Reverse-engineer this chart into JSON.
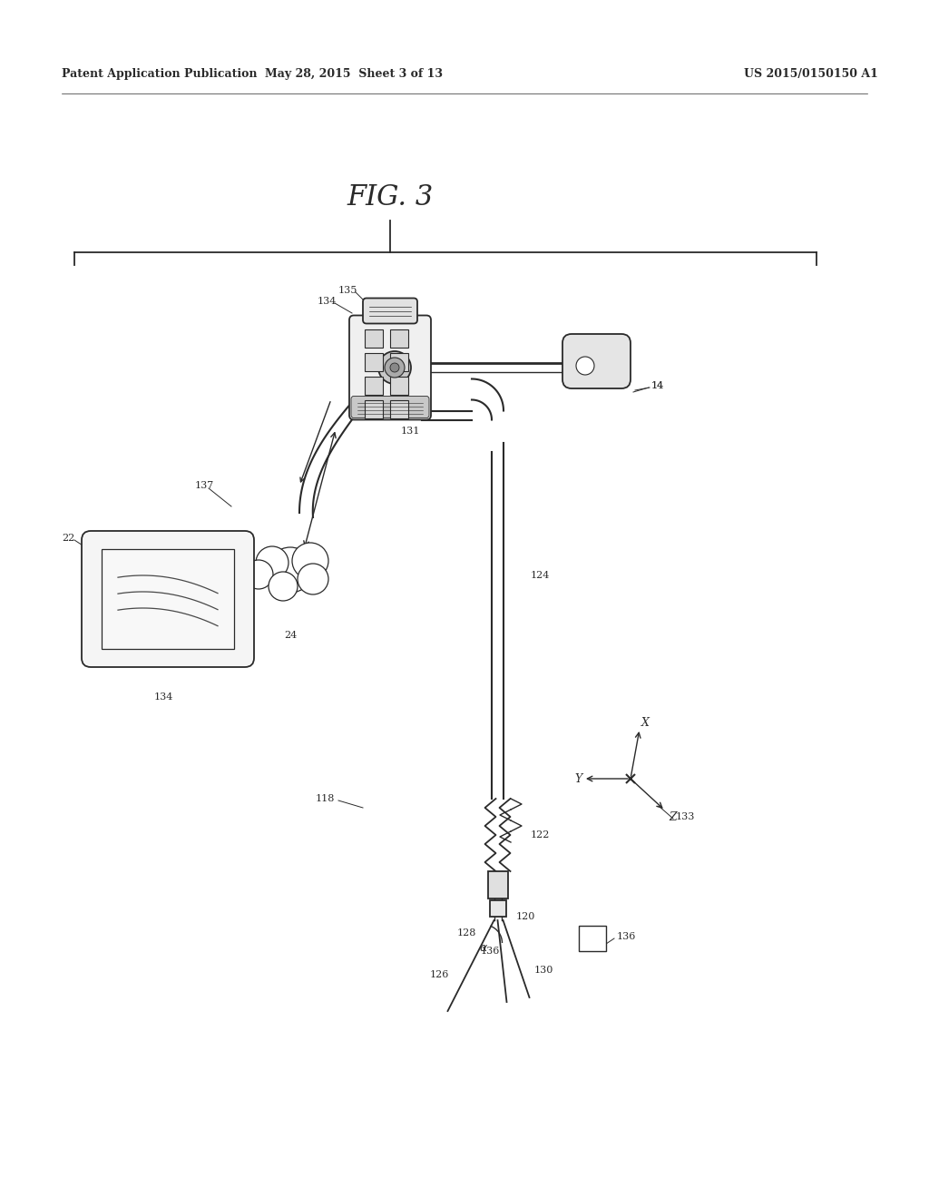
{
  "bg_color": "#ffffff",
  "line_color": "#2a2a2a",
  "header_left": "Patent Application Publication",
  "header_mid": "May 28, 2015  Sheet 3 of 13",
  "header_right": "US 2015/0150150 A1",
  "fig_label": "FIG. 3",
  "lw": 1.3
}
